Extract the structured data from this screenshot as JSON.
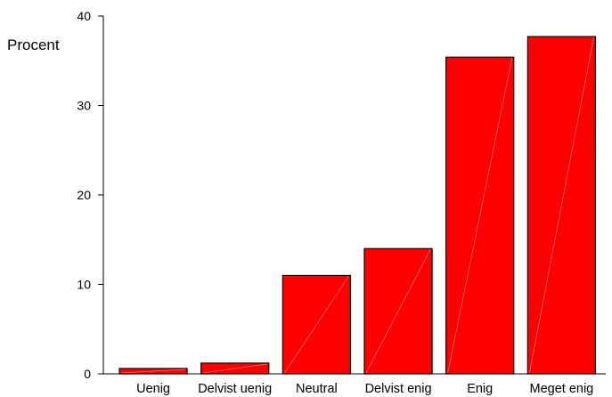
{
  "chart_data": {
    "type": "bar",
    "title": "",
    "ylabel": "Procent",
    "xlabel": "",
    "ylim": [
      0,
      40
    ],
    "yticks": [
      0,
      10,
      20,
      30,
      40
    ],
    "categories": [
      "Uenig",
      "Delvist uenig",
      "Neutral",
      "Delvist enig",
      "Enig",
      "Meget enig"
    ],
    "values": [
      0.6,
      1.2,
      11.0,
      14.0,
      35.4,
      37.7
    ],
    "bar_color": "#ff0000",
    "grid": false
  }
}
